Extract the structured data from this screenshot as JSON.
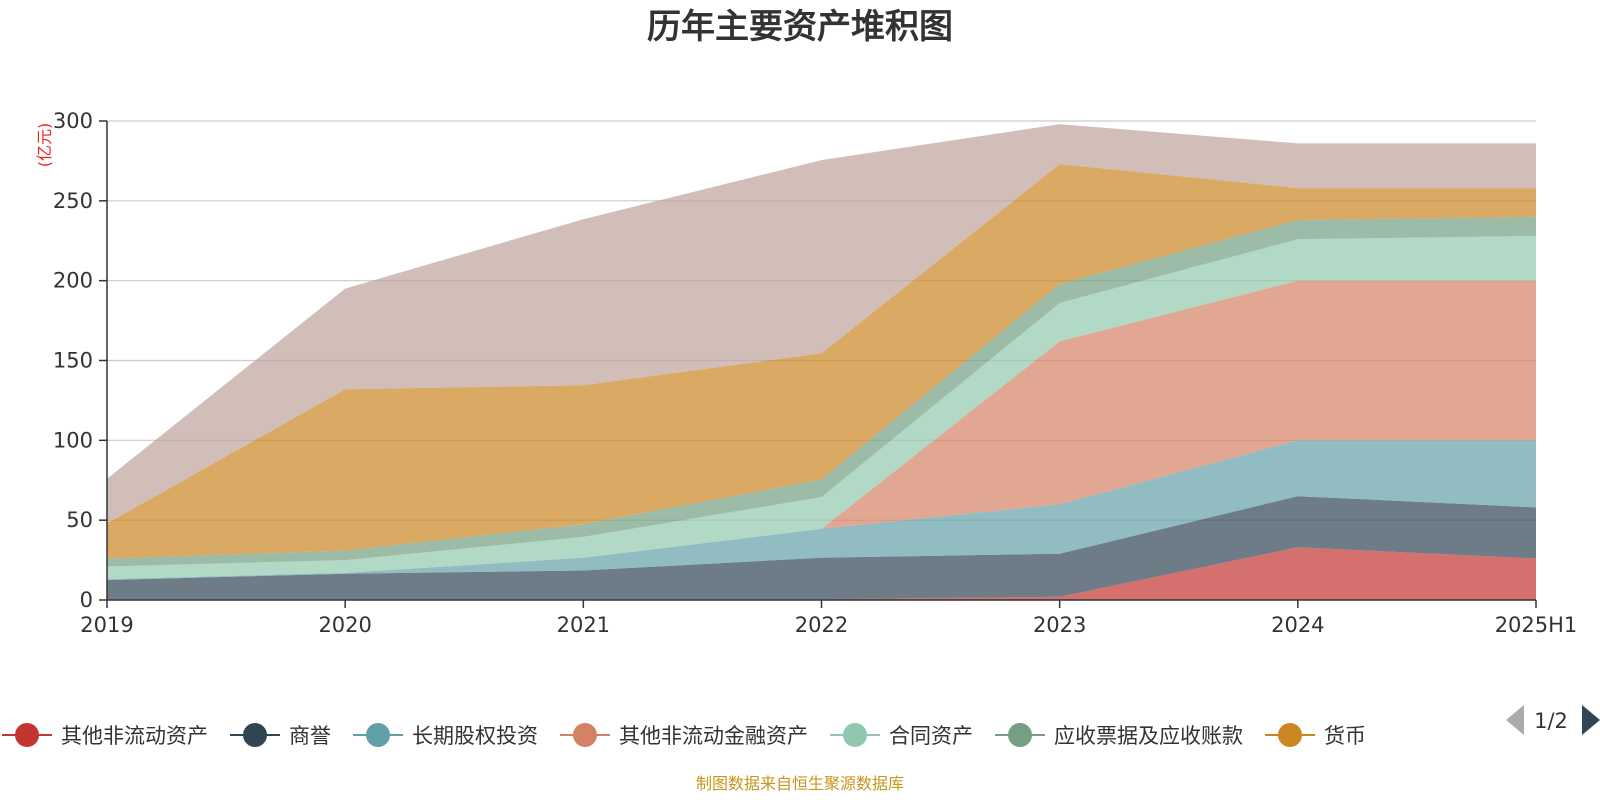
{
  "chart_data": {
    "type": "area",
    "title": "历年主要资产堆积图",
    "ylabel": "(亿元)",
    "xlabel": "",
    "categories": [
      "2019",
      "2020",
      "2021",
      "2022",
      "2023",
      "2024",
      "2025H1"
    ],
    "ylim": [
      0,
      300
    ],
    "yticks": [
      0,
      50,
      100,
      150,
      200,
      250,
      300
    ],
    "stacked": true,
    "grid": true,
    "legend_position": "bottom",
    "series": [
      {
        "name": "其他非流动资产",
        "color": "#c23531",
        "values": [
          0.5,
          0.5,
          0.5,
          0.5,
          2,
          33,
          26
        ]
      },
      {
        "name": "商誉",
        "color": "#2f4554",
        "values": [
          12,
          16,
          18,
          26,
          27,
          32,
          32
        ]
      },
      {
        "name": "长期股权投资",
        "color": "#61a0a8",
        "values": [
          0.5,
          0.5,
          8,
          18,
          31,
          35,
          42
        ]
      },
      {
        "name": "其他非流动金融资产",
        "color": "#d48265",
        "values": [
          0,
          0,
          0,
          0,
          102,
          100,
          100
        ]
      },
      {
        "name": "合同资产",
        "color": "#91c7ae",
        "values": [
          8,
          8,
          13,
          20,
          24,
          26,
          28
        ]
      },
      {
        "name": "应收票据及应收账款",
        "color": "#749f83",
        "values": [
          5,
          6,
          8,
          11,
          12,
          12,
          12
        ]
      },
      {
        "name": "货币",
        "color": "#ca8622",
        "values": [
          22,
          101,
          87,
          79,
          75,
          20,
          18
        ]
      },
      {
        "name": "",
        "color": "#bda29a",
        "values": [
          28,
          63,
          104,
          121,
          25,
          28,
          28
        ]
      }
    ]
  },
  "legend": {
    "page_indicator": "1/2"
  },
  "footer": {
    "source": "制图数据来自恒生聚源数据库"
  }
}
